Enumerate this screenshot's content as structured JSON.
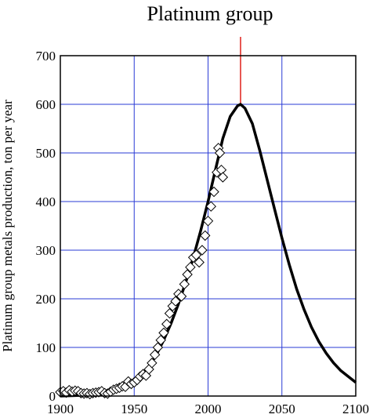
{
  "chart_data": {
    "type": "scatter",
    "title": "Platinum group",
    "xlabel": "",
    "ylabel": "Platinum group metals production, ton per year",
    "xlim": [
      1900,
      2100
    ],
    "ylim": [
      0,
      700
    ],
    "x_ticks": [
      1900,
      1950,
      2000,
      2050,
      2100
    ],
    "y_ticks": [
      0,
      100,
      200,
      300,
      400,
      500,
      600,
      700
    ],
    "grid": true,
    "peak_marker": {
      "x": 2022,
      "y": 600
    },
    "series": [
      {
        "kind": "scatter",
        "marker": "open-diamond",
        "points": [
          [
            1900,
            8
          ],
          [
            1902,
            10
          ],
          [
            1904,
            7
          ],
          [
            1906,
            12
          ],
          [
            1908,
            9
          ],
          [
            1910,
            11
          ],
          [
            1912,
            10
          ],
          [
            1914,
            6
          ],
          [
            1916,
            5
          ],
          [
            1918,
            6
          ],
          [
            1920,
            4
          ],
          [
            1922,
            6
          ],
          [
            1924,
            7
          ],
          [
            1926,
            8
          ],
          [
            1928,
            10
          ],
          [
            1930,
            6
          ],
          [
            1932,
            5
          ],
          [
            1934,
            9
          ],
          [
            1936,
            13
          ],
          [
            1938,
            15
          ],
          [
            1940,
            17
          ],
          [
            1942,
            20
          ],
          [
            1944,
            19
          ],
          [
            1946,
            30
          ],
          [
            1948,
            25
          ],
          [
            1950,
            28
          ],
          [
            1952,
            33
          ],
          [
            1954,
            40
          ],
          [
            1956,
            45
          ],
          [
            1958,
            42
          ],
          [
            1960,
            55
          ],
          [
            1962,
            68
          ],
          [
            1964,
            85
          ],
          [
            1966,
            100
          ],
          [
            1968,
            115
          ],
          [
            1970,
            130
          ],
          [
            1972,
            148
          ],
          [
            1974,
            170
          ],
          [
            1976,
            185
          ],
          [
            1978,
            195
          ],
          [
            1980,
            210
          ],
          [
            1982,
            205
          ],
          [
            1984,
            230
          ],
          [
            1986,
            250
          ],
          [
            1988,
            265
          ],
          [
            1990,
            285
          ],
          [
            1992,
            290
          ],
          [
            1994,
            275
          ],
          [
            1996,
            300
          ],
          [
            1998,
            330
          ],
          [
            2000,
            360
          ],
          [
            2002,
            390
          ],
          [
            2004,
            420
          ],
          [
            2006,
            460
          ],
          [
            2007,
            510
          ],
          [
            2008,
            500
          ],
          [
            2009,
            465
          ],
          [
            2010,
            450
          ]
        ]
      },
      {
        "kind": "line",
        "style": "thick-black",
        "points": [
          [
            1900,
            0
          ],
          [
            1920,
            2
          ],
          [
            1930,
            6
          ],
          [
            1940,
            12
          ],
          [
            1950,
            28
          ],
          [
            1955,
            42
          ],
          [
            1960,
            60
          ],
          [
            1965,
            85
          ],
          [
            1970,
            115
          ],
          [
            1975,
            150
          ],
          [
            1980,
            190
          ],
          [
            1985,
            235
          ],
          [
            1990,
            285
          ],
          [
            1995,
            340
          ],
          [
            2000,
            400
          ],
          [
            2005,
            465
          ],
          [
            2010,
            530
          ],
          [
            2015,
            575
          ],
          [
            2020,
            597
          ],
          [
            2022,
            600
          ],
          [
            2025,
            592
          ],
          [
            2030,
            560
          ],
          [
            2035,
            505
          ],
          [
            2040,
            445
          ],
          [
            2045,
            385
          ],
          [
            2050,
            325
          ],
          [
            2055,
            270
          ],
          [
            2060,
            220
          ],
          [
            2065,
            178
          ],
          [
            2070,
            142
          ],
          [
            2075,
            112
          ],
          [
            2080,
            88
          ],
          [
            2085,
            68
          ],
          [
            2090,
            52
          ],
          [
            2095,
            40
          ],
          [
            2100,
            28
          ]
        ]
      }
    ]
  }
}
